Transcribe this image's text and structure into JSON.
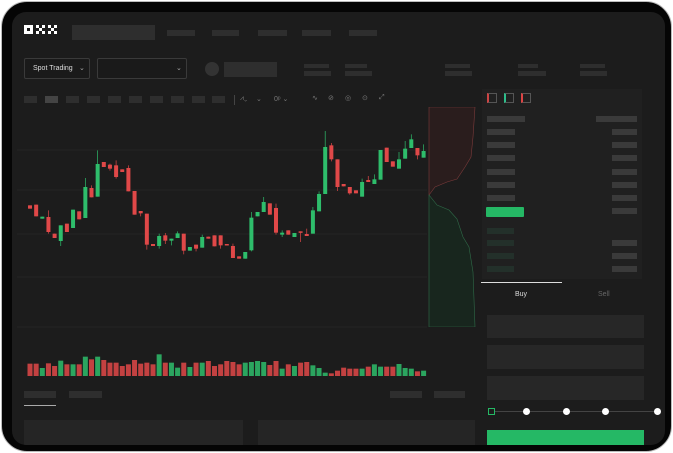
{
  "header": {
    "logo": "OKX",
    "spot_trading_label": "Spot Trading",
    "chevron": "chevron-down-icon"
  },
  "trade": {
    "buy_label": "Buy",
    "sell_label": "Sell",
    "buy_color": "#25b865",
    "slider_steps": [
      0,
      25,
      50,
      75,
      100
    ],
    "slider_value": 0
  },
  "colors": {
    "up": "#2ebd6b",
    "down": "#e04848",
    "background": "#1c1c1c"
  },
  "chart_data": {
    "type": "candlestick",
    "candles": [
      [
        250,
        250,
        240,
        240
      ],
      [
        252,
        252,
        217,
        217
      ],
      [
        210,
        216,
        210,
        216
      ],
      [
        215,
        235,
        165,
        170
      ],
      [
        165,
        165,
        152,
        152
      ],
      [
        143,
        190,
        128,
        190
      ],
      [
        195,
        195,
        170,
        170
      ],
      [
        182,
        237,
        182,
        237
      ],
      [
        232,
        232,
        208,
        208
      ],
      [
        212,
        332,
        212,
        305
      ],
      [
        302,
        310,
        274,
        274
      ],
      [
        276,
        415,
        276,
        374
      ],
      [
        380,
        380,
        365,
        365
      ],
      [
        372,
        375,
        354,
        360
      ],
      [
        370,
        385,
        330,
        335
      ],
      [
        358,
        358,
        350,
        350
      ],
      [
        362,
        370,
        292,
        292
      ],
      [
        293,
        293,
        222,
        222
      ],
      [
        233,
        233,
        217,
        226
      ],
      [
        225,
        225,
        117,
        132
      ],
      [
        134,
        134,
        128,
        128
      ],
      [
        128,
        165,
        120,
        158
      ],
      [
        160,
        167,
        134,
        144
      ],
      [
        144,
        150,
        130,
        150
      ],
      [
        152,
        172,
        152,
        166
      ],
      [
        165,
        165,
        103,
        114
      ],
      [
        114,
        125,
        114,
        125
      ],
      [
        132,
        132,
        112,
        120
      ],
      [
        123,
        162,
        123,
        155
      ],
      [
        156,
        156,
        150,
        150
      ],
      [
        160,
        160,
        127,
        127
      ],
      [
        160,
        160,
        120,
        130
      ],
      [
        134,
        134,
        130,
        130
      ],
      [
        128,
        135,
        92,
        92
      ],
      [
        97,
        97,
        90,
        90
      ],
      [
        90,
        110,
        90,
        110
      ],
      [
        115,
        230,
        112,
        213
      ],
      [
        217,
        230,
        217,
        230
      ],
      [
        230,
        275,
        230,
        260
      ],
      [
        256,
        256,
        222,
        222
      ],
      [
        242,
        255,
        162,
        168
      ],
      [
        162,
        175,
        155,
        168
      ],
      [
        175,
        175,
        162,
        162
      ],
      [
        155,
        167,
        155,
        167
      ],
      [
        172,
        172,
        140,
        170
      ],
      [
        164,
        180,
        158,
        158
      ],
      [
        165,
        245,
        165,
        235
      ],
      [
        232,
        292,
        232,
        284
      ],
      [
        284,
        473,
        284,
        425
      ],
      [
        430,
        437,
        382,
        388
      ],
      [
        388,
        388,
        293,
        305
      ],
      [
        314,
        314,
        307,
        307
      ],
      [
        305,
        305,
        282,
        286
      ],
      [
        295,
        295,
        286,
        286
      ],
      [
        276,
        330,
        276,
        320
      ],
      [
        326,
        338,
        320,
        320
      ],
      [
        314,
        343,
        314,
        328
      ],
      [
        327,
        416,
        327,
        416
      ],
      [
        423,
        423,
        380,
        380
      ],
      [
        382,
        382,
        366,
        366
      ],
      [
        360,
        410,
        360,
        388
      ],
      [
        390,
        443,
        390,
        420
      ],
      [
        422,
        463,
        422,
        448
      ],
      [
        422,
        422,
        388,
        400
      ],
      [
        393,
        433,
        393,
        413
      ]
    ],
    "candle_format": [
      "open",
      "high",
      "low",
      "close"
    ],
    "volume": [
      37,
      37,
      24,
      38,
      30,
      46,
      35,
      35,
      35,
      58,
      50,
      58,
      48,
      40,
      40,
      30,
      35,
      48,
      37,
      40,
      35,
      65,
      40,
      40,
      25,
      40,
      27,
      40,
      40,
      45,
      30,
      35,
      45,
      42,
      35,
      40,
      42,
      45,
      42,
      33,
      45,
      22,
      35,
      30,
      40,
      42,
      32,
      24,
      10,
      8,
      16,
      25,
      22,
      22,
      22,
      28,
      35,
      28,
      28,
      28,
      36,
      24,
      22,
      14,
      16
    ],
    "grid": true
  }
}
